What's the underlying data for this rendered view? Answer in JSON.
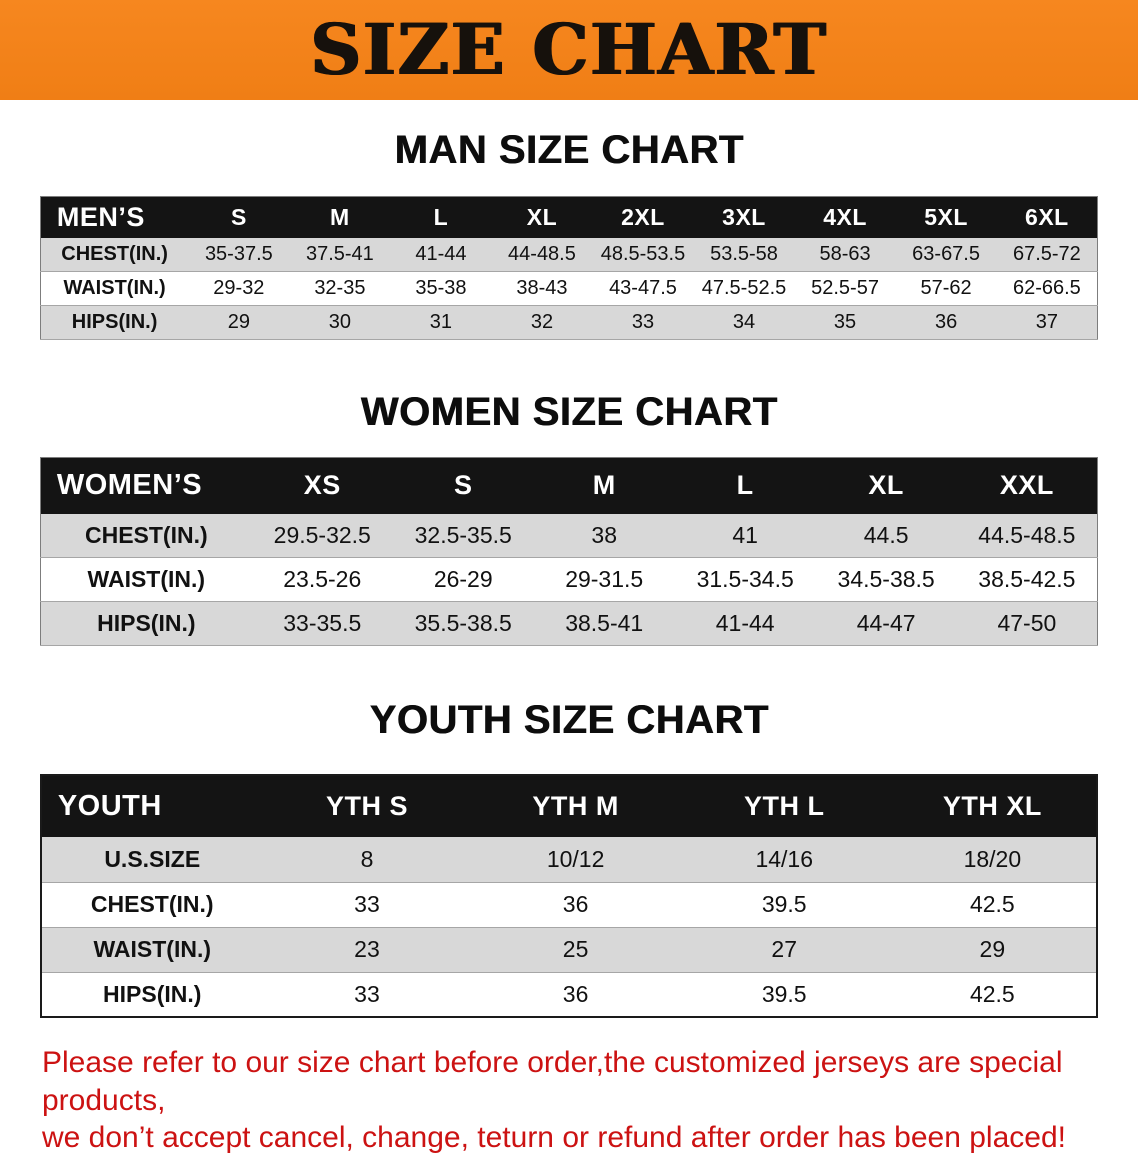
{
  "banner": {
    "title": "SIZE CHART"
  },
  "colors": {
    "banner-orange": "#f6871f",
    "banner-orange-dark": "#f07e15",
    "table-header-bg": "#141414",
    "row-gray": "#d8d8d8",
    "notice-red": "#cc1212"
  },
  "sections": [
    {
      "id": "men",
      "heading": "MAN SIZE CHART",
      "table": {
        "header": [
          "MEN’S",
          "S",
          "M",
          "L",
          "XL",
          "2XL",
          "3XL",
          "4XL",
          "5XL",
          "6XL"
        ],
        "rows": [
          [
            "CHEST(IN.)",
            "35-37.5",
            "37.5-41",
            "41-44",
            "44-48.5",
            "48.5-53.5",
            "53.5-58",
            "58-63",
            "63-67.5",
            "67.5-72"
          ],
          [
            "WAIST(IN.)",
            "29-32",
            "32-35",
            "35-38",
            "38-43",
            "43-47.5",
            "47.5-52.5",
            "52.5-57",
            "57-62",
            "62-66.5"
          ],
          [
            "HIPS(IN.)",
            "29",
            "30",
            "31",
            "32",
            "33",
            "34",
            "35",
            "36",
            "37"
          ]
        ]
      }
    },
    {
      "id": "women",
      "heading": "WOMEN SIZE CHART",
      "table": {
        "header": [
          "WOMEN’S",
          "XS",
          "S",
          "M",
          "L",
          "XL",
          "XXL"
        ],
        "rows": [
          [
            "CHEST(IN.)",
            "29.5-32.5",
            "32.5-35.5",
            "38",
            "41",
            "44.5",
            "44.5-48.5"
          ],
          [
            "WAIST(IN.)",
            "23.5-26",
            "26-29",
            "29-31.5",
            "31.5-34.5",
            "34.5-38.5",
            "38.5-42.5"
          ],
          [
            "HIPS(IN.)",
            "33-35.5",
            "35.5-38.5",
            "38.5-41",
            "41-44",
            "44-47",
            "47-50"
          ]
        ]
      }
    },
    {
      "id": "youth",
      "heading": "YOUTH SIZE CHART",
      "table": {
        "header": [
          "YOUTH",
          "YTH S",
          "YTH M",
          "YTH L",
          "YTH XL"
        ],
        "rows": [
          [
            "U.S.SIZE",
            "8",
            "10/12",
            "14/16",
            "18/20"
          ],
          [
            "CHEST(IN.)",
            "33",
            "36",
            "39.5",
            "42.5"
          ],
          [
            "WAIST(IN.)",
            "23",
            "25",
            "27",
            "29"
          ],
          [
            "HIPS(IN.)",
            "33",
            "36",
            "39.5",
            "42.5"
          ]
        ]
      }
    }
  ],
  "notice": {
    "line1": "Please refer to our size chart before order,the customized jerseys are special products,",
    "line2": "we don’t accept cancel, change, teturn or refund after order has been placed!"
  }
}
